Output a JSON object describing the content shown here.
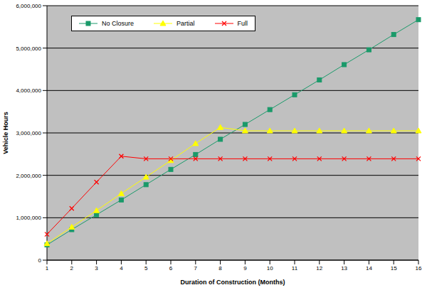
{
  "chart_data": {
    "type": "line",
    "x_label": "Duration of Construction (Months)",
    "y_label": "Vehicle Hours",
    "categories": [
      "1",
      "2",
      "3",
      "4",
      "5",
      "6",
      "7",
      "8",
      "9",
      "10",
      "11",
      "12",
      "13",
      "14",
      "15",
      "16"
    ],
    "series": [
      {
        "name": "No Closure",
        "color": "#1a9a6a",
        "marker": "square",
        "values": [
          360000,
          720000,
          1070000,
          1420000,
          1780000,
          2140000,
          2490000,
          2850000,
          3200000,
          3550000,
          3900000,
          4250000,
          4610000,
          4960000,
          5320000,
          5670000
        ]
      },
      {
        "name": "Partial",
        "color": "#ffff00",
        "marker": "triangle",
        "values": [
          390000,
          780000,
          1170000,
          1570000,
          1960000,
          2350000,
          2750000,
          3130000,
          3050000,
          3050000,
          3050000,
          3050000,
          3050000,
          3050000,
          3050000,
          3050000
        ]
      },
      {
        "name": "Full",
        "color": "#ff0000",
        "marker": "x",
        "values": [
          610000,
          1220000,
          1840000,
          2450000,
          2390000,
          2390000,
          2390000,
          2390000,
          2390000,
          2390000,
          2390000,
          2390000,
          2390000,
          2390000,
          2390000,
          2390000
        ]
      }
    ],
    "ylim": [
      0,
      6000000
    ],
    "yticks": [
      0,
      {
        "value": 1000000,
        "label": "1,000,000"
      },
      {
        "value": 2000000,
        "label": "2,000,000"
      },
      {
        "value": 3000000,
        "label": "3,000,000"
      },
      {
        "value": 4000000,
        "label": "4,000,000"
      },
      {
        "value": 5000000,
        "label": "5,000,000"
      },
      {
        "value": 6000000,
        "label": "6,000,000"
      }
    ],
    "grid": true,
    "legend": "upper left"
  }
}
